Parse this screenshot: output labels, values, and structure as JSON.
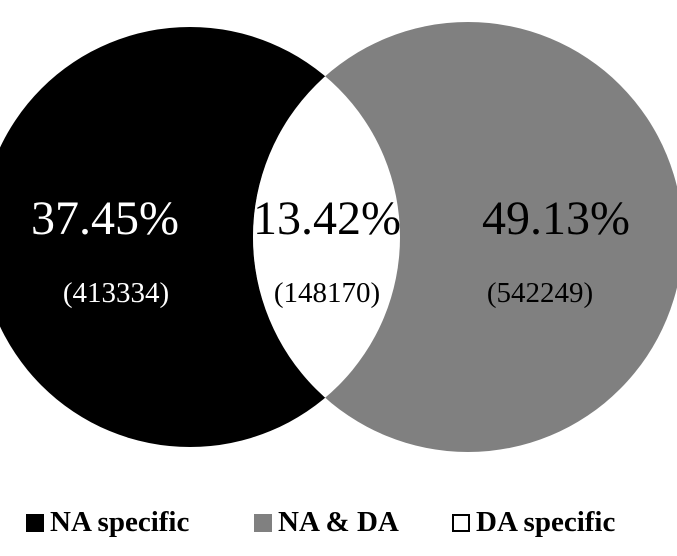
{
  "colors": {
    "left_circle": "#000000",
    "right_circle": "#808080",
    "overlap": "#ffffff",
    "background": "#ffffff"
  },
  "venn": {
    "left": {
      "percent": "37.45%",
      "count": "(413334)"
    },
    "middle": {
      "percent": "13.42%",
      "count": "(148170)"
    },
    "right": {
      "percent": "49.13%",
      "count": "(542249)"
    }
  },
  "legend": [
    {
      "label": "NA specific",
      "color": "#000000"
    },
    {
      "label": "NA & DA",
      "color": "#808080"
    },
    {
      "label": "DA specific",
      "color": "#ffffff"
    }
  ]
}
